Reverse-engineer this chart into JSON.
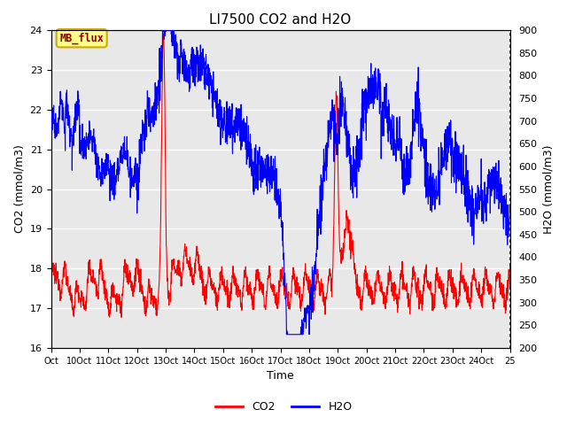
{
  "title": "LI7500 CO2 and H2O",
  "xlabel": "Time",
  "ylabel_left": "CO2 (mmol/m3)",
  "ylabel_right": "H2O (mmol/m3)",
  "xlim": [
    0,
    16
  ],
  "ylim_left": [
    16.0,
    24.0
  ],
  "ylim_right": [
    200,
    900
  ],
  "xtick_labels": [
    "Oct",
    "10Oct",
    "11Oct",
    "12Oct",
    "13Oct",
    "14Oct",
    "15Oct",
    "16Oct",
    "17Oct",
    "18Oct",
    "19Oct",
    "20Oct",
    "21Oct",
    "22Oct",
    "23Oct",
    "24Oct",
    "25"
  ],
  "xtick_positions": [
    0,
    1,
    2,
    3,
    4,
    5,
    6,
    7,
    8,
    9,
    10,
    11,
    12,
    13,
    14,
    15,
    16
  ],
  "yticks_left": [
    16.0,
    17.0,
    18.0,
    19.0,
    20.0,
    21.0,
    22.0,
    23.0,
    24.0
  ],
  "yticks_right": [
    200,
    250,
    300,
    350,
    400,
    450,
    500,
    550,
    600,
    650,
    700,
    750,
    800,
    850,
    900
  ],
  "annotation_text": "MB_flux",
  "color_co2": "#FF0000",
  "color_h2o": "#0000FF",
  "bg_color": "#E8E8E8",
  "title_fontsize": 11,
  "tick_fontsize": 8,
  "label_fontsize": 9
}
